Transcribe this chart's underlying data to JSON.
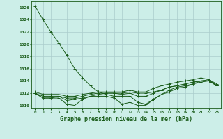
{
  "title": "Graphe pression niveau de la mer (hPa)",
  "xlabel": "Graphe pression niveau de la mer (hPa)",
  "background_color": "#cceee8",
  "grid_color": "#aacccc",
  "line_color": "#1a5c1a",
  "xlim": [
    -0.5,
    23.5
  ],
  "ylim": [
    1009.5,
    1027.0
  ],
  "yticks": [
    1010,
    1012,
    1014,
    1016,
    1018,
    1020,
    1022,
    1024,
    1026
  ],
  "xticks": [
    0,
    1,
    2,
    3,
    4,
    5,
    6,
    7,
    8,
    9,
    10,
    11,
    12,
    13,
    14,
    15,
    16,
    17,
    18,
    19,
    20,
    21,
    22,
    23
  ],
  "series": [
    [
      1026.2,
      1024.0,
      1022.0,
      1020.2,
      1018.2,
      1016.0,
      1014.5,
      1013.2,
      1012.2,
      1011.8,
      1011.5,
      1011.5,
      1011.5,
      1010.5,
      1010.2,
      1011.0,
      1011.8,
      1012.5,
      1013.0,
      1013.2,
      1013.5,
      1014.0,
      1014.2,
      1013.2
    ],
    [
      1012.0,
      1011.2,
      1011.2,
      1011.2,
      1010.2,
      1010.0,
      1011.0,
      1011.5,
      1011.5,
      1011.5,
      1011.2,
      1010.2,
      1010.5,
      1010.0,
      1010.0,
      1011.0,
      1011.8,
      1012.2,
      1012.8,
      1013.0,
      1013.5,
      1013.8,
      1014.0,
      1013.2
    ],
    [
      1012.0,
      1011.2,
      1011.2,
      1011.5,
      1010.8,
      1011.0,
      1011.2,
      1011.5,
      1011.8,
      1012.0,
      1012.0,
      1011.8,
      1012.0,
      1011.5,
      1011.5,
      1012.0,
      1012.5,
      1013.0,
      1013.2,
      1013.5,
      1013.8,
      1014.0,
      1014.0,
      1013.2
    ],
    [
      1012.0,
      1011.5,
      1011.5,
      1011.5,
      1011.2,
      1011.2,
      1011.5,
      1011.8,
      1012.0,
      1012.0,
      1012.0,
      1012.0,
      1012.2,
      1012.0,
      1012.0,
      1012.2,
      1012.5,
      1013.0,
      1013.2,
      1013.5,
      1013.8,
      1014.0,
      1014.0,
      1013.2
    ],
    [
      1012.2,
      1011.8,
      1011.8,
      1011.8,
      1011.5,
      1011.5,
      1011.8,
      1012.0,
      1012.2,
      1012.2,
      1012.2,
      1012.2,
      1012.5,
      1012.2,
      1012.2,
      1012.8,
      1013.2,
      1013.5,
      1013.8,
      1014.0,
      1014.2,
      1014.5,
      1014.2,
      1013.5
    ]
  ]
}
